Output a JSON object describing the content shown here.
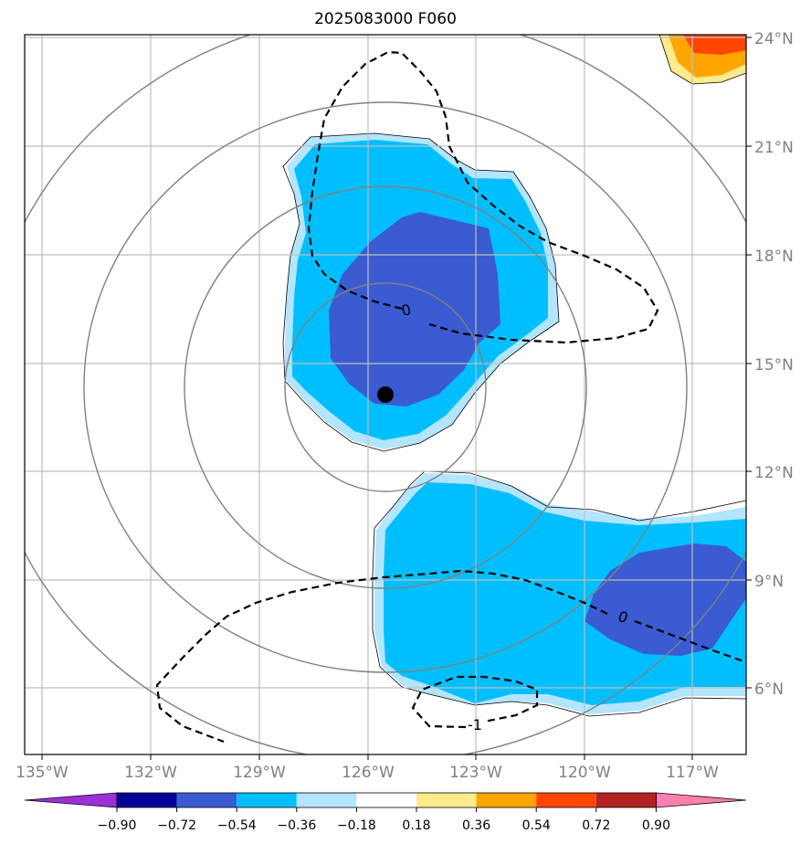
{
  "map": {
    "title": "2025083000 F060",
    "lon_labels": [
      "135°W",
      "132°W",
      "129°W",
      "126°W",
      "123°W",
      "120°W",
      "117°W"
    ],
    "lat_labels": [
      "24°N",
      "21°N",
      "18°N",
      "15°N",
      "12°N",
      "9°N",
      "6°N"
    ],
    "lon_extent": [
      -135.5,
      -115.5
    ],
    "lat_extent": [
      4.3,
      24.1
    ],
    "storm_center": {
      "lon": -125.5,
      "lat": 14.2
    },
    "range_rings_count": 4,
    "contour_labels": [
      "0",
      "0",
      "-1"
    ]
  },
  "colorbar": {
    "tick_labels": [
      "−0.90",
      "−0.72",
      "−0.54",
      "−0.36",
      "−0.18",
      "0.18",
      "0.36",
      "0.54",
      "0.72",
      "0.90"
    ],
    "colors": [
      "#9b30d9",
      "#000099",
      "#3a5bd1",
      "#00bfff",
      "#b3e5ff",
      "#ffffff",
      "#ffeb8c",
      "#ffa500",
      "#ff4500",
      "#b22222",
      "#ff80b0"
    ]
  }
}
